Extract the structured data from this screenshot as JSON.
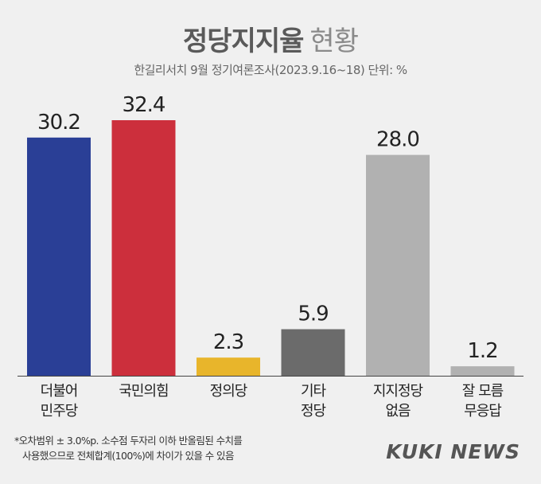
{
  "title": {
    "main": "정당지지율",
    "sub": "현황"
  },
  "subtitle": "한길리서치 9월 정기여론조사(2023.9.16~18) 단위: %",
  "chart_data": {
    "type": "bar",
    "categories": [
      [
        "더불어",
        "민주당"
      ],
      [
        "국민의힘"
      ],
      [
        "정의당"
      ],
      [
        "기타",
        "정당"
      ],
      [
        "지지정당",
        "없음"
      ],
      [
        "잘 모름",
        "무응답"
      ]
    ],
    "values": [
      30.2,
      32.4,
      2.3,
      5.9,
      28.0,
      1.2
    ],
    "value_labels": [
      "30.2",
      "32.4",
      "2.3",
      "5.9",
      "28.0",
      "1.2"
    ],
    "colors": [
      "#2a3f96",
      "#cc2f3c",
      "#e8b52b",
      "#6b6b6b",
      "#b1b1b1",
      "#b1b1b1"
    ],
    "ylim": [
      0,
      32.4
    ],
    "grid": false,
    "legend": "none"
  },
  "footnote": [
    "*오차범위 ± 3.0%p. 소수점 두자리 이하 반올림된 수치를",
    "사용했으므로 전체합계(100%)에 차이가 있을 수 있음"
  ],
  "logo": "KUKI NEWS"
}
